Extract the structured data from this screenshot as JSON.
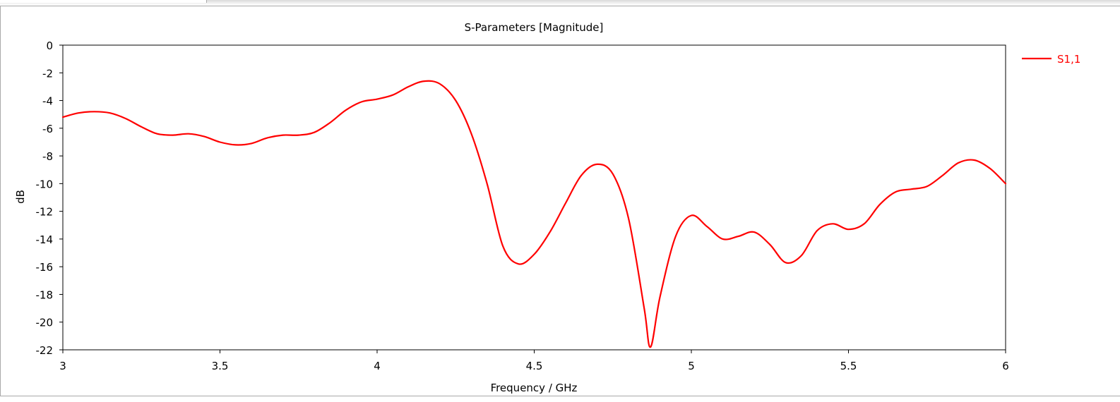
{
  "chart_data": {
    "type": "line",
    "title": "S-Parameters [Magnitude]",
    "xlabel": "Frequency / GHz",
    "ylabel": "dB",
    "xlim": [
      3,
      6
    ],
    "ylim": [
      -22,
      0
    ],
    "x_ticks": [
      "3",
      "3.5",
      "4",
      "4.5",
      "5",
      "5.5",
      "6"
    ],
    "y_ticks": [
      "0",
      "-2",
      "-4",
      "-6",
      "-8",
      "-10",
      "-12",
      "-14",
      "-16",
      "-18",
      "-20",
      "-22"
    ],
    "grid": true,
    "legend_position": "right",
    "series": [
      {
        "name": "S1,1",
        "color": "#ff0000",
        "points": [
          [
            3.0,
            -5.2
          ],
          [
            3.05,
            -4.9
          ],
          [
            3.1,
            -4.8
          ],
          [
            3.15,
            -4.9
          ],
          [
            3.2,
            -5.3
          ],
          [
            3.25,
            -5.9
          ],
          [
            3.3,
            -6.4
          ],
          [
            3.35,
            -6.5
          ],
          [
            3.4,
            -6.4
          ],
          [
            3.45,
            -6.6
          ],
          [
            3.5,
            -7.0
          ],
          [
            3.55,
            -7.2
          ],
          [
            3.6,
            -7.1
          ],
          [
            3.65,
            -6.7
          ],
          [
            3.7,
            -6.5
          ],
          [
            3.75,
            -6.5
          ],
          [
            3.8,
            -6.3
          ],
          [
            3.85,
            -5.6
          ],
          [
            3.9,
            -4.7
          ],
          [
            3.95,
            -4.1
          ],
          [
            4.0,
            -3.9
          ],
          [
            4.05,
            -3.6
          ],
          [
            4.1,
            -3.0
          ],
          [
            4.15,
            -2.6
          ],
          [
            4.2,
            -2.8
          ],
          [
            4.25,
            -4.0
          ],
          [
            4.3,
            -6.4
          ],
          [
            4.35,
            -10.0
          ],
          [
            4.4,
            -14.5
          ],
          [
            4.45,
            -15.8
          ],
          [
            4.5,
            -15.1
          ],
          [
            4.55,
            -13.5
          ],
          [
            4.6,
            -11.4
          ],
          [
            4.65,
            -9.4
          ],
          [
            4.7,
            -8.6
          ],
          [
            4.75,
            -9.3
          ],
          [
            4.8,
            -12.5
          ],
          [
            4.85,
            -19.0
          ],
          [
            4.87,
            -21.8
          ],
          [
            4.9,
            -18.2
          ],
          [
            4.95,
            -13.8
          ],
          [
            5.0,
            -12.3
          ],
          [
            5.05,
            -13.1
          ],
          [
            5.1,
            -14.0
          ],
          [
            5.15,
            -13.8
          ],
          [
            5.2,
            -13.5
          ],
          [
            5.25,
            -14.4
          ],
          [
            5.3,
            -15.7
          ],
          [
            5.35,
            -15.2
          ],
          [
            5.4,
            -13.4
          ],
          [
            5.45,
            -12.9
          ],
          [
            5.5,
            -13.3
          ],
          [
            5.55,
            -12.9
          ],
          [
            5.6,
            -11.5
          ],
          [
            5.65,
            -10.6
          ],
          [
            5.7,
            -10.4
          ],
          [
            5.75,
            -10.2
          ],
          [
            5.8,
            -9.4
          ],
          [
            5.85,
            -8.5
          ],
          [
            5.9,
            -8.3
          ],
          [
            5.95,
            -8.9
          ],
          [
            6.0,
            -10.0
          ]
        ]
      }
    ]
  }
}
